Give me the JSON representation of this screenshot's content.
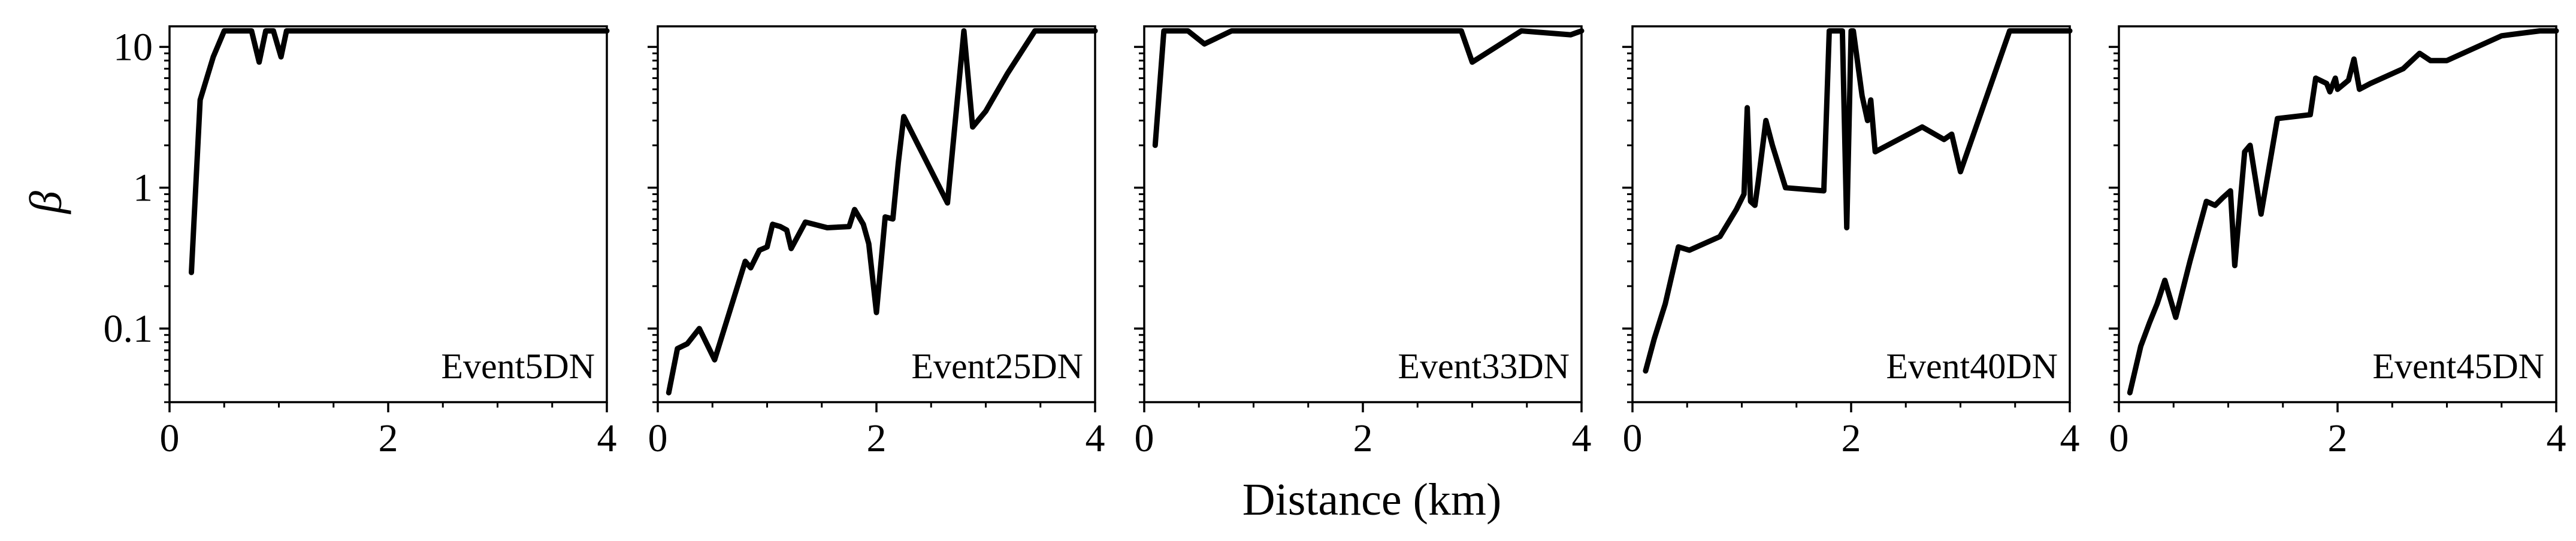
{
  "figure": {
    "ylabel": "β",
    "xlabel": "Distance (km)"
  },
  "chart_data": [
    {
      "type": "line",
      "annotation": "Event5DN",
      "xlim": [
        0,
        4
      ],
      "ylim": [
        0.03,
        14
      ],
      "yscale": "log",
      "xticks": [
        0,
        2,
        4
      ],
      "yticks": [
        0.1,
        1,
        10
      ],
      "yticklabels": [
        "0.1",
        "1",
        "10"
      ],
      "grid": false,
      "series": [
        {
          "color": "#000000",
          "x": [
            0.2,
            0.28,
            0.4,
            0.5,
            0.6,
            0.75,
            0.82,
            0.88,
            0.95,
            1.02,
            1.07,
            1.15,
            1.3,
            2.0,
            3.0,
            4.0
          ],
          "y": [
            0.25,
            4.2,
            8.5,
            13,
            13,
            13,
            7.8,
            13,
            13,
            8.5,
            13,
            13,
            13,
            13,
            13,
            13
          ]
        }
      ]
    },
    {
      "type": "line",
      "annotation": "Event25DN",
      "xlim": [
        0,
        4
      ],
      "ylim": [
        0.03,
        14
      ],
      "yscale": "log",
      "xticks": [
        0,
        2,
        4
      ],
      "yticks": [
        0.1,
        1,
        10
      ],
      "yticklabels": [
        "0.1",
        "1",
        "10"
      ],
      "grid": false,
      "series": [
        {
          "color": "#000000",
          "x": [
            0.1,
            0.18,
            0.27,
            0.38,
            0.52,
            0.8,
            0.85,
            0.93,
            1.0,
            1.05,
            1.12,
            1.18,
            1.22,
            1.35,
            1.55,
            1.75,
            1.8,
            1.88,
            1.93,
            2.0,
            2.08,
            2.15,
            2.2,
            2.25,
            2.65,
            2.8,
            2.88,
            3.0,
            3.2,
            3.45,
            4.0
          ],
          "y": [
            0.035,
            0.072,
            0.078,
            0.1,
            0.06,
            0.3,
            0.27,
            0.36,
            0.38,
            0.55,
            0.53,
            0.5,
            0.37,
            0.57,
            0.52,
            0.53,
            0.7,
            0.55,
            0.4,
            0.13,
            0.62,
            0.6,
            1.5,
            3.2,
            0.78,
            13,
            2.7,
            3.5,
            6.5,
            13,
            13
          ]
        }
      ]
    },
    {
      "type": "line",
      "annotation": "Event33DN",
      "xlim": [
        0,
        4
      ],
      "ylim": [
        0.03,
        14
      ],
      "yscale": "log",
      "xticks": [
        0,
        2,
        4
      ],
      "yticks": [
        0.1,
        1,
        10
      ],
      "yticklabels": [
        "0.1",
        "1",
        "10"
      ],
      "grid": false,
      "series": [
        {
          "color": "#000000",
          "x": [
            0.1,
            0.18,
            0.4,
            0.55,
            0.8,
            1.5,
            2.5,
            2.9,
            3.0,
            3.45,
            3.9,
            4.0
          ],
          "y": [
            2.0,
            13,
            13,
            10.5,
            13,
            13,
            13,
            13,
            7.8,
            13,
            12.2,
            13
          ]
        }
      ]
    },
    {
      "type": "line",
      "annotation": "Event40DN",
      "xlim": [
        0,
        4
      ],
      "ylim": [
        0.03,
        14
      ],
      "yscale": "log",
      "xticks": [
        0,
        2,
        4
      ],
      "yticks": [
        0.1,
        1,
        10
      ],
      "yticklabels": [
        "0.1",
        "1",
        "10"
      ],
      "grid": false,
      "series": [
        {
          "color": "#000000",
          "x": [
            0.12,
            0.2,
            0.3,
            0.42,
            0.52,
            0.8,
            0.95,
            1.02,
            1.05,
            1.08,
            1.12,
            1.15,
            1.22,
            1.28,
            1.4,
            1.75,
            1.8,
            1.88,
            1.92,
            1.96,
            2.0,
            2.02,
            2.1,
            2.15,
            2.18,
            2.22,
            2.65,
            2.85,
            2.92,
            3.0,
            3.45,
            4.0
          ],
          "y": [
            0.05,
            0.085,
            0.15,
            0.38,
            0.36,
            0.45,
            0.7,
            0.9,
            3.7,
            0.8,
            0.75,
            1.1,
            3.0,
            2.0,
            1.0,
            0.95,
            13,
            13,
            13,
            0.52,
            13,
            13,
            4.5,
            3.0,
            4.2,
            1.8,
            2.7,
            2.2,
            2.4,
            1.3,
            13,
            13
          ]
        }
      ]
    },
    {
      "type": "line",
      "annotation": "Event45DN",
      "xlim": [
        0,
        4
      ],
      "ylim": [
        0.03,
        14
      ],
      "yscale": "log",
      "xticks": [
        0,
        2,
        4
      ],
      "yticks": [
        0.1,
        1,
        10
      ],
      "yticklabels": [
        "0.1",
        "1",
        "10"
      ],
      "grid": false,
      "series": [
        {
          "color": "#000000",
          "x": [
            0.1,
            0.2,
            0.28,
            0.35,
            0.42,
            0.52,
            0.65,
            0.8,
            0.88,
            0.95,
            1.02,
            1.06,
            1.15,
            1.2,
            1.3,
            1.45,
            1.75,
            1.8,
            1.9,
            1.93,
            1.98,
            2.0,
            2.1,
            2.15,
            2.2,
            2.3,
            2.6,
            2.75,
            2.85,
            3.0,
            3.5,
            3.85,
            4.0
          ],
          "y": [
            0.035,
            0.075,
            0.11,
            0.15,
            0.22,
            0.12,
            0.3,
            0.8,
            0.75,
            0.85,
            0.95,
            0.28,
            1.8,
            2.0,
            0.65,
            3.1,
            3.3,
            6.0,
            5.5,
            4.8,
            6.0,
            5.0,
            5.8,
            8.2,
            5.0,
            5.5,
            7.0,
            9.0,
            8.0,
            8.0,
            12.0,
            13.0,
            13.0
          ]
        }
      ]
    }
  ]
}
